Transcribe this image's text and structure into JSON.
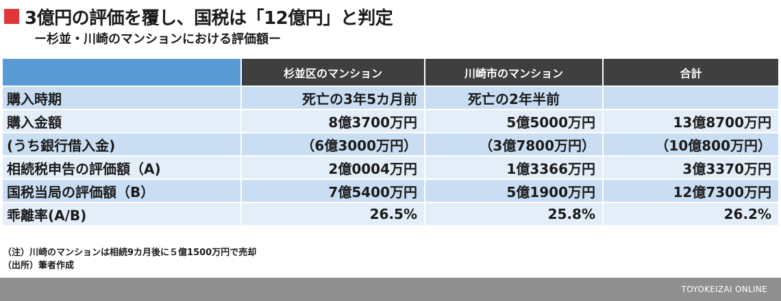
{
  "title": "3億円の評価を覆し、国税は「12億円」と判定",
  "subtitle": "ー杉並・川崎のマンションにおける評価額ー",
  "table": {
    "columns": [
      "",
      "杉並区のマンション",
      "川崎市のマンション",
      "合計"
    ],
    "rows": [
      {
        "label": "購入時期",
        "cells": [
          "死亡の3年5カ月前",
          "死亡の2年半前",
          ""
        ]
      },
      {
        "label": "購入金額",
        "cells": [
          "8億3700万円",
          "5億5000万円",
          "13億8700万円"
        ]
      },
      {
        "label": "(うち銀行借入金)",
        "cells": [
          "（6億3000万円）",
          "（3億7800万円）",
          "（10億800万円）"
        ]
      },
      {
        "label": "相続税申告の評価額（A)",
        "cells": [
          "2億0004万円",
          "1億3366万円",
          "3億3370万円"
        ]
      },
      {
        "label": "国税当局の評価額（B）",
        "cells": [
          "7億5400万円",
          "5億1900万円",
          "12億7300万円"
        ]
      },
      {
        "label": "乖離率(A/B)",
        "cells": [
          "26.5%",
          "25.8%",
          "26.2%"
        ]
      }
    ]
  },
  "notes": [
    "（注）川崎のマンションは相続9カ月後に５億1500万円で売却",
    "（出所）筆者作成"
  ],
  "footer": {
    "brand": "TOYOKEIZAI ONLINE"
  },
  "colors": {
    "accent_marker": "#e0363a",
    "header_dark": "#3f3f3f",
    "header_corner": "#5b9bd5",
    "row_dark": "#c9def2",
    "row_light": "#e3eef9",
    "footer_bar": "#8f8f8f"
  }
}
